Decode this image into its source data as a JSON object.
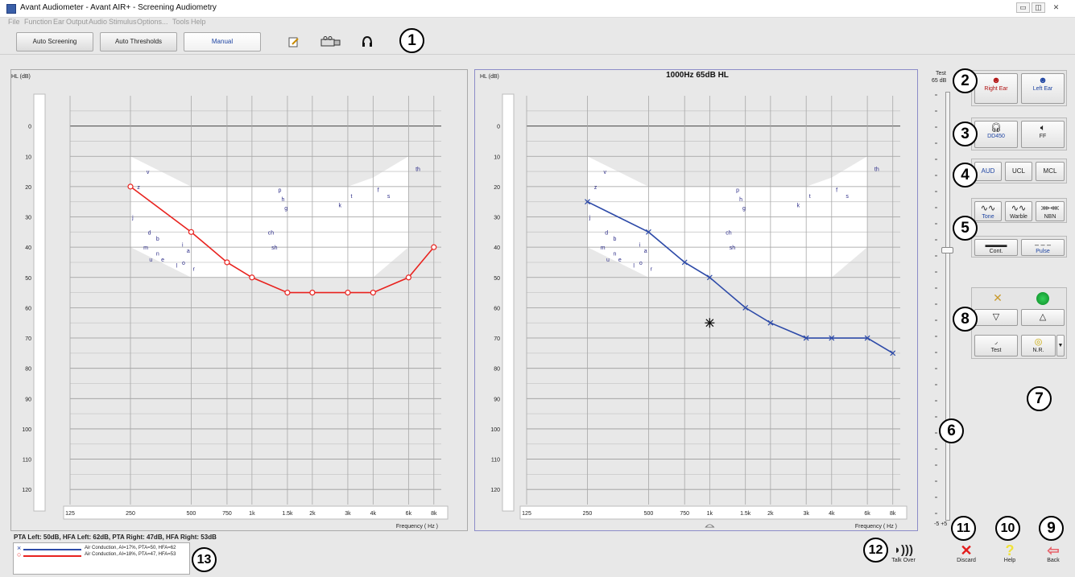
{
  "window": {
    "title": "Avant Audiometer - Avant AIR+ - Screening Audiometry",
    "controls": [
      "▭",
      "◫",
      "✕"
    ]
  },
  "menu": [
    "File",
    "Function",
    "Ear",
    "Output",
    "Audio",
    "Stimulus",
    "Options...",
    "Tools",
    "Help"
  ],
  "toolbar": {
    "modes": [
      "Auto Screening",
      "Auto Thresholds",
      "Manual"
    ],
    "active_mode": "Manual",
    "icons": [
      "notes-icon",
      "video-icon",
      "headset-icon"
    ]
  },
  "callouts": [
    "1",
    "2",
    "3",
    "4",
    "5",
    "6",
    "7",
    "8",
    "9",
    "10",
    "11",
    "12",
    "13"
  ],
  "audiogram": {
    "hl_label": "HL (dB)",
    "freq_label": "Frequency ( Hz )",
    "y_ticks": [
      "0",
      "10",
      "20",
      "30",
      "40",
      "50",
      "60",
      "70",
      "80",
      "90",
      "100",
      "110",
      "120"
    ],
    "y_values": [
      0,
      10,
      20,
      30,
      40,
      50,
      60,
      70,
      80,
      90,
      100,
      110,
      120
    ],
    "x_ticks": [
      "125",
      "250",
      "500",
      "750",
      "1k",
      "1.5k",
      "2k",
      "3k",
      "4k",
      "6k",
      "8k"
    ],
    "speech_letters": [
      "v",
      "z",
      "j",
      "d",
      "b",
      "m",
      "n",
      "u",
      "e",
      "l",
      "i",
      "a",
      "o",
      "r",
      "ch",
      "sh",
      "p",
      "h",
      "g",
      "k",
      "t",
      "f",
      "s",
      "th"
    ],
    "speech_banana_color": "#ffffff"
  },
  "left_chart": {
    "ear": "Right",
    "color": "#e8231f",
    "series": [
      {
        "freq": "250",
        "hl": 20
      },
      {
        "freq": "500",
        "hl": 35
      },
      {
        "freq": "750",
        "hl": 45
      },
      {
        "freq": "1k",
        "hl": 50
      },
      {
        "freq": "1.5k",
        "hl": 55
      },
      {
        "freq": "2k",
        "hl": 55
      },
      {
        "freq": "3k",
        "hl": 55
      },
      {
        "freq": "4k",
        "hl": 55
      },
      {
        "freq": "6k",
        "hl": 50
      },
      {
        "freq": "8k",
        "hl": 40
      }
    ]
  },
  "right_chart": {
    "ear": "Left",
    "header": "1000Hz   65dB HL",
    "color": "#2d4aa8",
    "series": [
      {
        "freq": "250",
        "hl": 25
      },
      {
        "freq": "500",
        "hl": 35
      },
      {
        "freq": "750",
        "hl": 45
      },
      {
        "freq": "1k",
        "hl": 50
      },
      {
        "freq": "1.5k",
        "hl": 60
      },
      {
        "freq": "2k",
        "hl": 65
      },
      {
        "freq": "3k",
        "hl": 70
      },
      {
        "freq": "4k",
        "hl": 70
      },
      {
        "freq": "6k",
        "hl": 70
      },
      {
        "freq": "8k",
        "hl": 75
      }
    ],
    "cursor": {
      "freq": "1k",
      "hl": 65
    }
  },
  "level_slider": {
    "label": "Test",
    "value_label": "65 dB",
    "bottom_labels": [
      "-5",
      "+5"
    ]
  },
  "ear_select": {
    "right": "Right Ear",
    "left": "Left Ear"
  },
  "transducer": {
    "headphone": "DD450",
    "freefield": "FF"
  },
  "test_type": [
    "AUD",
    "UCL",
    "MCL"
  ],
  "stimulus": [
    "Tone",
    "Warble",
    "NBN"
  ],
  "pulse_mode": [
    "Cont.",
    "Pulse"
  ],
  "presentation": {
    "test": "Test",
    "nr": "N.R."
  },
  "summary": {
    "text": "PTA Left: 50dB, HFA Left: 62dB, PTA Right: 47dB, HFA Right: 53dB",
    "legend": [
      {
        "color": "#2d4aa8",
        "marker": "×",
        "text": "Air Conduction, AI=17%, PTA=50, HFA=62"
      },
      {
        "color": "#e8231f",
        "marker": "○",
        "text": "Air Conduction, AI=18%, PTA=47, HFA=53"
      }
    ]
  },
  "footer": {
    "talk_over": "Talk Over",
    "discard": "Discard",
    "help": "Help",
    "back": "Back"
  }
}
